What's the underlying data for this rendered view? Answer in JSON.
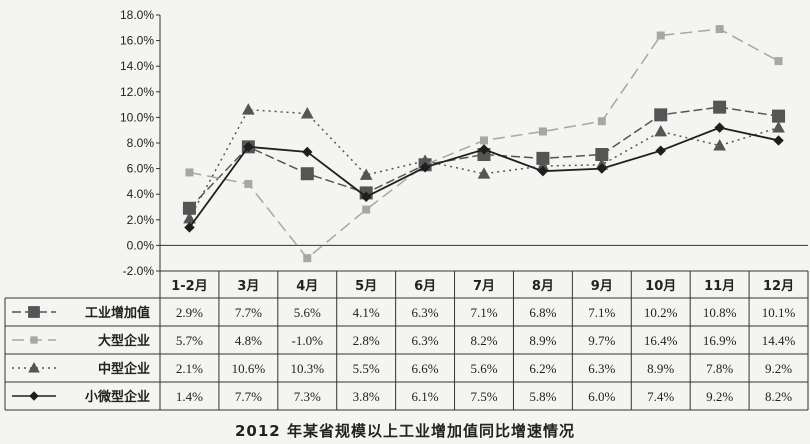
{
  "chart_data": {
    "type": "line",
    "title": "2012 年某省规模以上工业增加值同比增速情况",
    "categories": [
      "1-2月",
      "3月",
      "4月",
      "5月",
      "6月",
      "7月",
      "8月",
      "9月",
      "10月",
      "11月",
      "12月"
    ],
    "ylim": [
      -2,
      18
    ],
    "yticks": [
      "-2.0%",
      "0.0%",
      "2.0%",
      "4.0%",
      "6.0%",
      "8.0%",
      "10.0%",
      "12.0%",
      "14.0%",
      "16.0%",
      "18.0%"
    ],
    "series": [
      {
        "name": "工业增加值",
        "marker": "square",
        "dash": "dashed",
        "color": "#555555",
        "values": [
          2.9,
          7.7,
          5.6,
          4.1,
          6.3,
          7.1,
          6.8,
          7.1,
          10.2,
          10.8,
          10.1
        ],
        "labels": [
          "2.9%",
          "7.7%",
          "5.6%",
          "4.1%",
          "6.3%",
          "7.1%",
          "6.8%",
          "7.1%",
          "10.2%",
          "10.8%",
          "10.1%"
        ]
      },
      {
        "name": "大型企业",
        "marker": "small-square",
        "dash": "long-dashed",
        "color": "#a6a6a6",
        "values": [
          5.7,
          4.8,
          -1.0,
          2.8,
          6.3,
          8.2,
          8.9,
          9.7,
          16.4,
          16.9,
          14.4
        ],
        "labels": [
          "5.7%",
          "4.8%",
          "-1.0%",
          "2.8%",
          "6.3%",
          "8.2%",
          "8.9%",
          "9.7%",
          "16.4%",
          "16.9%",
          "14.4%"
        ]
      },
      {
        "name": "中型企业",
        "marker": "triangle",
        "dash": "dotted",
        "color": "#555555",
        "values": [
          2.1,
          10.6,
          10.3,
          5.5,
          6.6,
          5.6,
          6.2,
          6.3,
          8.9,
          7.8,
          9.2
        ],
        "labels": [
          "2.1%",
          "10.6%",
          "10.3%",
          "5.5%",
          "6.6%",
          "5.6%",
          "6.2%",
          "6.3%",
          "8.9%",
          "7.8%",
          "9.2%"
        ]
      },
      {
        "name": "小微型企业",
        "marker": "diamond",
        "dash": "solid",
        "color": "#1e1e1e",
        "values": [
          1.4,
          7.7,
          7.3,
          3.8,
          6.1,
          7.5,
          5.8,
          6.0,
          7.4,
          9.2,
          8.2
        ],
        "labels": [
          "1.4%",
          "7.7%",
          "7.3%",
          "3.8%",
          "6.1%",
          "7.5%",
          "5.8%",
          "6.0%",
          "7.4%",
          "9.2%",
          "8.2%"
        ]
      }
    ],
    "legend": "table-left",
    "grid": false
  }
}
